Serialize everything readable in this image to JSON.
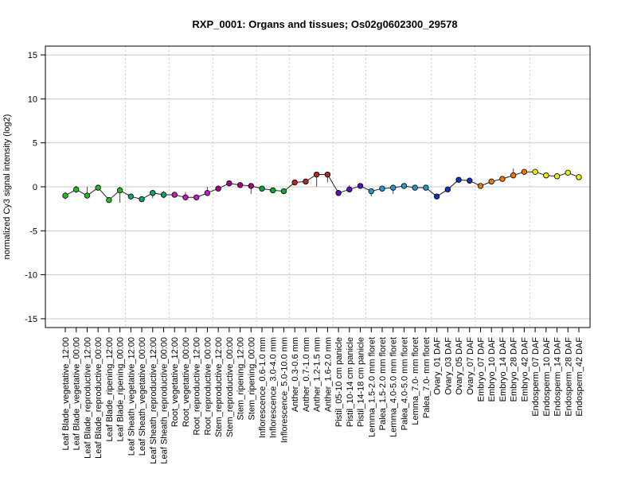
{
  "chart_data": {
    "type": "line",
    "title": "RXP_0001: Organs and tissues; Os02g0602300_29578",
    "xlabel": "",
    "ylabel": "normalized Cy3 signal intensity (log2)",
    "ylim": [
      -16,
      16
    ],
    "yticks": [
      -15,
      -10,
      -5,
      0,
      5,
      10,
      15
    ],
    "grid": true,
    "categories": [
      "Leaf Blade_vegetative_12:00",
      "Leaf Blade_vegetative_00:00",
      "Leaf Blade_reproductive_12:00",
      "Leaf Blade_reproductive_00:00",
      "Leaf Blade_ripening_12:00",
      "Leaf Blade_ripening_00:00",
      "Leaf Sheath_vegetative_12:00",
      "Leaf Sheath_vegetative_00:00",
      "Leaf Sheath_reproductive_12:00",
      "Leaf Sheath_reproductive_00:00",
      "Root_vegetative_12:00",
      "Root_vegetative_00:00",
      "Root_reproductive_12:00",
      "Root_reproductive_00:00",
      "Stem_reproductive_12:00",
      "Stem_reproductive_00:00",
      "Stem_ripening_12:00",
      "Stem_ripening_00:00",
      "Inflorescence_0.6-1.0 mm",
      "Inflorescence_3.0-4.0 mm",
      "Inflorescence_5.0-10.0 mm",
      "Anther_0.3-0.6 mm",
      "Anther_0.7-1.0 mm",
      "Anther_1.2-1.5 mm",
      "Anther_1.6-2.0 mm",
      "Pistil_05-10 cm panicle",
      "Pistil_10-14 cm panicle",
      "Pistil_14-18 cm panicle",
      "Lemma_1.5-2.0 mm floret",
      "Palea_1.5-2.0 mm floret",
      "Lemma_4.0-5.0 mm floret",
      "Palea_4.0-5.0 mm floret",
      "Lemma_7.0- mm floret",
      "Palea_7.0- mm floret",
      "Ovary_01 DAF",
      "Ovary_03 DAF",
      "Ovary_05 DAF",
      "Ovary_07 DAF",
      "Embryo_07 DAF",
      "Embryo_10 DAF",
      "Embryo_14 DAF",
      "Embryo_28 DAF",
      "Embryo_42 DAF",
      "Endosperm_07 DAF",
      "Endosperm_10 DAF",
      "Endosperm_14 DAF",
      "Endosperm_28 DAF",
      "Endosperm_42 DAF"
    ],
    "values": [
      -1.0,
      -0.3,
      -1.0,
      -0.1,
      -1.5,
      -0.4,
      -1.1,
      -1.4,
      -0.7,
      -0.9,
      -0.9,
      -1.2,
      -1.2,
      -0.7,
      -0.2,
      0.4,
      0.2,
      0.1,
      -0.2,
      -0.4,
      -0.5,
      0.5,
      0.6,
      1.4,
      1.4,
      -0.7,
      -0.3,
      0.1,
      -0.5,
      -0.2,
      -0.1,
      0.1,
      -0.1,
      -0.1,
      -1.1,
      -0.3,
      0.8,
      0.7,
      0.1,
      0.6,
      0.9,
      1.3,
      1.7,
      1.7,
      1.3,
      1.2,
      1.6,
      1.1
    ],
    "error_low": [
      -1.4,
      -0.7,
      -1.3,
      -0.4,
      -1.7,
      -1.8,
      -1.3,
      -1.6,
      -1.3,
      -1.3,
      -1.1,
      -1.5,
      -1.4,
      -0.9,
      -0.4,
      0.2,
      -0.1,
      -0.8,
      -0.4,
      -0.6,
      -0.7,
      0.3,
      0.4,
      0.0,
      0.5,
      -0.9,
      -0.5,
      -0.1,
      -1.1,
      -0.4,
      -0.8,
      -0.1,
      -0.3,
      -0.3,
      -1.3,
      -0.5,
      0.6,
      0.5,
      -0.1,
      0.4,
      0.7,
      1.0,
      1.5,
      1.5,
      1.1,
      1.0,
      1.4,
      0.9
    ],
    "error_high": [
      -0.6,
      0.1,
      0.0,
      0.2,
      -1.3,
      0.0,
      -0.9,
      -1.2,
      -0.5,
      -0.5,
      -0.7,
      -0.6,
      -1.0,
      0.0,
      0.0,
      0.6,
      0.4,
      0.3,
      0.0,
      -0.2,
      -0.3,
      0.7,
      0.8,
      1.6,
      1.6,
      -0.5,
      0.2,
      0.3,
      -0.3,
      0.0,
      0.1,
      0.3,
      0.2,
      0.1,
      -0.9,
      -0.1,
      1.0,
      0.9,
      0.3,
      0.8,
      1.1,
      2.1,
      1.9,
      1.9,
      1.5,
      1.4,
      1.8,
      1.3
    ],
    "point_colors": [
      "#22bb22",
      "#22bb22",
      "#22bb22",
      "#22bb22",
      "#22bb22",
      "#22bb22",
      "#00aa66",
      "#00aa66",
      "#00aa66",
      "#00aa66",
      "#bb22bb",
      "#bb22bb",
      "#bb22bb",
      "#bb22bb",
      "#aa0088",
      "#aa0088",
      "#aa0088",
      "#aa0088",
      "#00aa33",
      "#00aa33",
      "#00aa33",
      "#bb2222",
      "#bb2222",
      "#bb2222",
      "#bb2222",
      "#5511bb",
      "#5511bb",
      "#5511bb",
      "#2299cc",
      "#2299cc",
      "#2299cc",
      "#2299cc",
      "#2299cc",
      "#2299cc",
      "#1133bb",
      "#1133bb",
      "#1133bb",
      "#1133bb",
      "#ee7700",
      "#ee7700",
      "#ee7700",
      "#ee7700",
      "#ee7700",
      "#eeee00",
      "#eeee00",
      "#eeee00",
      "#eeee00",
      "#eeee00"
    ],
    "group_dividers_after": [
      5,
      9,
      13,
      17,
      20,
      24,
      27,
      33,
      37,
      42
    ]
  }
}
